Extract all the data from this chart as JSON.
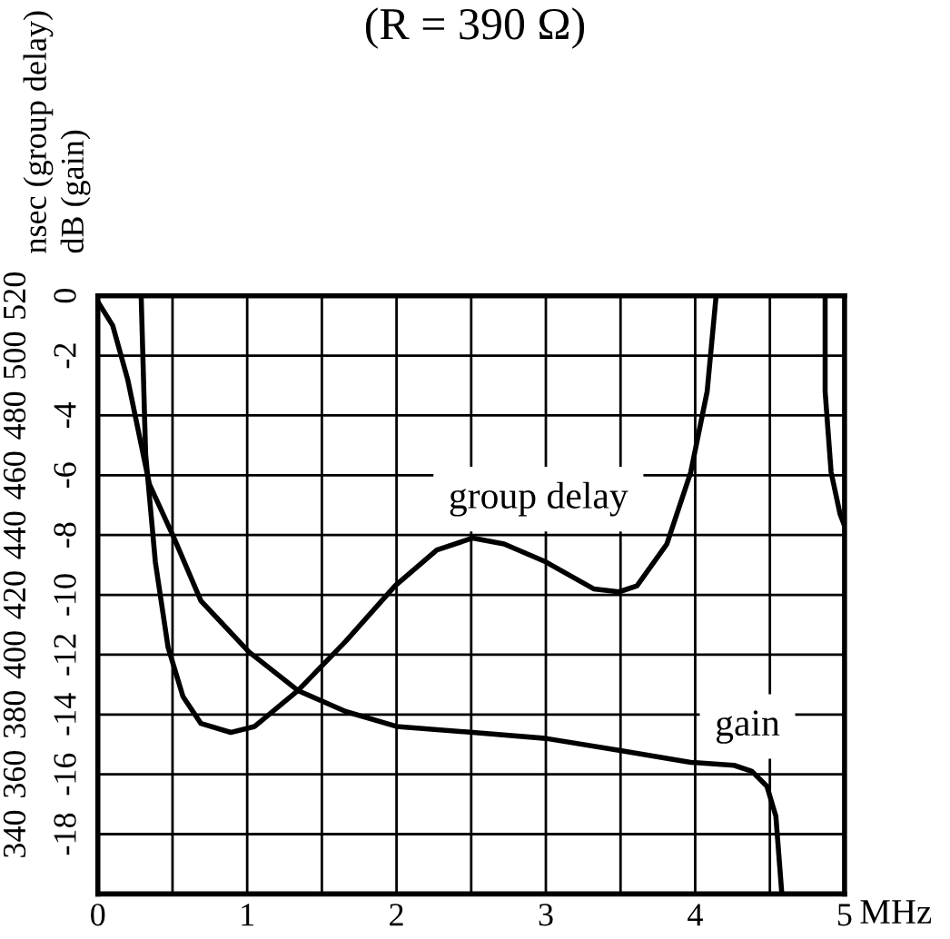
{
  "chart_data": {
    "type": "line",
    "title": "(R = 390 Ω)",
    "xlabel": "MHz",
    "ylabel": "dB (gain)",
    "y2label": "nsec (group delay)",
    "xlim": [
      0,
      5
    ],
    "xticks": [
      0,
      {
        "value": 0.5,
        "label": null
      },
      1,
      {
        "value": 1.5,
        "label": null
      },
      2,
      {
        "value": 2.5,
        "label": null
      },
      3,
      {
        "value": 3.5,
        "label": null
      },
      4,
      {
        "value": 4.5,
        "label": null
      },
      5
    ],
    "ylim": [
      -20,
      0
    ],
    "yticks": [
      {
        "value": -20,
        "label": null
      },
      -18,
      -16,
      -14,
      -12,
      -10,
      -8,
      -6,
      -4,
      -2,
      0
    ],
    "y2lim": [
      320,
      520
    ],
    "y2ticks": [
      {
        "value": 320,
        "label": null
      },
      340,
      360,
      380,
      400,
      420,
      440,
      460,
      480,
      500,
      520
    ],
    "grid": true,
    "marker": "none",
    "line_style": "solid",
    "series": [
      {
        "name": "gain",
        "color": "#000000",
        "x": [
          0,
          0.1,
          0.2,
          0.345,
          0.51,
          0.69,
          1.01,
          1.34,
          1.66,
          2.0,
          2.51,
          3.0,
          3.49,
          3.97,
          4.26,
          4.38,
          4.48,
          4.54,
          4.58
        ],
        "values": [
          -0.2,
          -1.0,
          -2.8,
          -6.3,
          -8.1,
          -10.2,
          -11.9,
          -13.2,
          -13.9,
          -14.4,
          -14.6,
          -14.8,
          -15.2,
          -15.6,
          -15.7,
          -15.9,
          -16.4,
          -17.4,
          -20
        ]
      },
      {
        "name": "group delay",
        "color": "#000000",
        "axis": "y2",
        "x": [
          0.29,
          0.32,
          0.385,
          0.47,
          0.57,
          0.69,
          0.89,
          1.05,
          1.34,
          1.66,
          1.99,
          2.27,
          2.51,
          2.72,
          3.0,
          3.32,
          3.49,
          3.61,
          3.81,
          3.97,
          4.08,
          4.14,
          null,
          4.87,
          4.87,
          4.91,
          4.97,
          5.0
        ],
        "values": [
          520,
          467,
          431,
          402.5,
          386,
          377,
          374,
          376,
          388,
          404.5,
          423,
          435,
          439,
          437,
          431,
          422,
          421,
          423,
          437,
          461,
          488,
          520,
          null,
          520,
          488,
          461,
          447,
          443
        ]
      }
    ]
  }
}
